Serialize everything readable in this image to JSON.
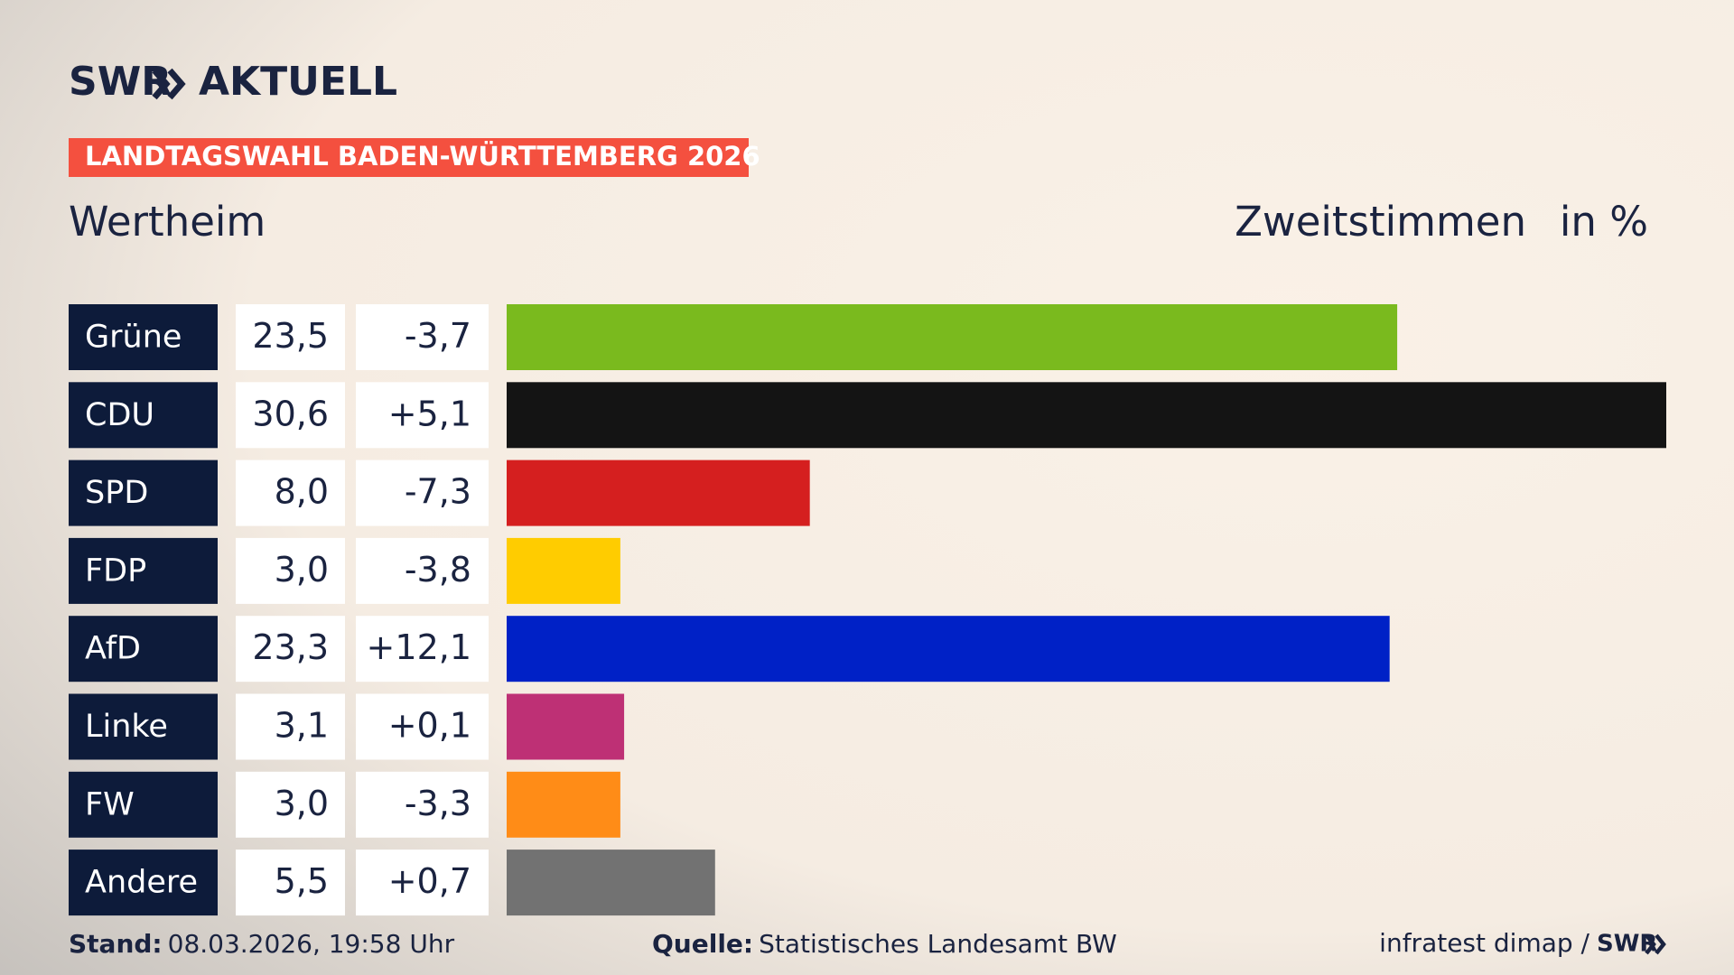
{
  "header": {
    "logo_brand": "SWR",
    "logo_title": "AKTUELL",
    "banner": "LANDTAGSWAHL BADEN-WÜRTTEMBERG 2026"
  },
  "chart_data": {
    "type": "bar",
    "title": "Wertheim",
    "value_axis_label": "Zweitstimmen",
    "unit_label": "in %",
    "categories": [
      "Grüne",
      "CDU",
      "SPD",
      "FDP",
      "AfD",
      "Linke",
      "FW",
      "Andere"
    ],
    "values": [
      23.5,
      30.6,
      8.0,
      3.0,
      23.3,
      3.1,
      3.0,
      5.5
    ],
    "value_labels": [
      "23,5",
      "30,6",
      "8,0",
      "3,0",
      "23,3",
      "3,1",
      "3,0",
      "5,5"
    ],
    "changes": [
      -3.7,
      5.1,
      -7.3,
      -3.8,
      12.1,
      0.1,
      -3.3,
      0.7
    ],
    "change_labels": [
      "-3,7",
      "+5,1",
      "-7,3",
      "-3,8",
      "+12,1",
      "+0,1",
      "-3,3",
      "+0,7"
    ],
    "colors": [
      "#7aba1e",
      "#141414",
      "#d51f1f",
      "#ffcc00",
      "#0021c6",
      "#be3075",
      "#ff8c17",
      "#727272"
    ],
    "xlim": [
      0,
      30.6
    ]
  },
  "footer": {
    "stand_label": "Stand:",
    "stand": "08.03.2026, 19:58 Uhr",
    "source_label": "Quelle:",
    "source": "Statistisches Landesamt BW",
    "credit": "infratest dimap /",
    "credit_brand": "SWR"
  }
}
